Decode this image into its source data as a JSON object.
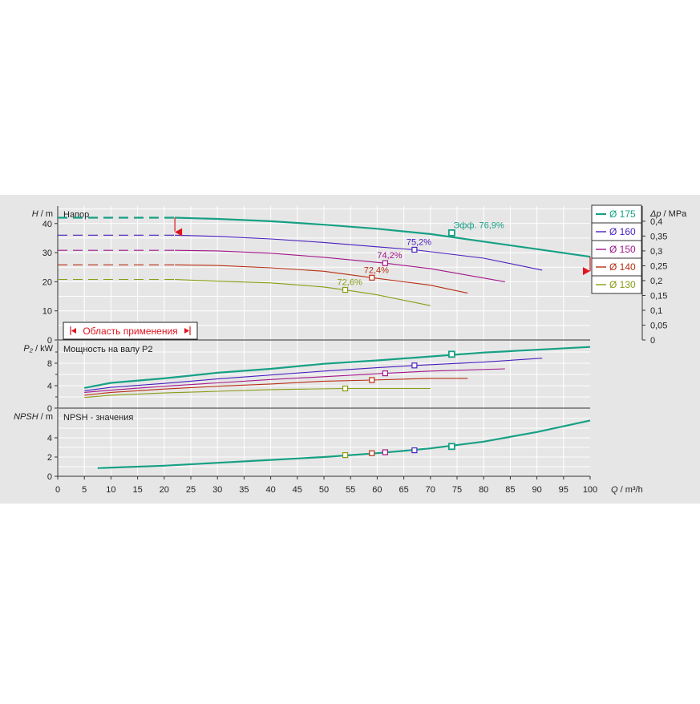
{
  "chart_data": {
    "type": "line",
    "x": {
      "label_symbol": "Q",
      "label_unit": " / m³/h",
      "range": [
        0,
        100
      ],
      "ticks": [
        0,
        5,
        10,
        15,
        20,
        25,
        30,
        35,
        40,
        45,
        50,
        55,
        60,
        65,
        70,
        75,
        80,
        85,
        90,
        95,
        100
      ]
    },
    "colors": {
      "background": "#e6e6e6",
      "grid": "#ffffff",
      "axis": "#333333",
      "operating_limit": "#e0141e"
    },
    "series": [
      {
        "name": "Ø 175",
        "color": "#17a085",
        "bold": true,
        "H": [
          [
            22,
            42.0
          ],
          [
            30,
            41.6
          ],
          [
            40,
            40.8
          ],
          [
            50,
            39.6
          ],
          [
            60,
            38.2
          ],
          [
            70,
            36.4
          ],
          [
            80,
            33.8
          ],
          [
            90,
            31.2
          ],
          [
            100,
            28.6
          ]
        ],
        "dashed_H": [
          [
            0,
            42.0
          ],
          [
            22,
            42.0
          ]
        ],
        "P2": [
          [
            5,
            3.6
          ],
          [
            10,
            4.5
          ],
          [
            20,
            5.3
          ],
          [
            30,
            6.3
          ],
          [
            40,
            7.0
          ],
          [
            50,
            7.9
          ],
          [
            60,
            8.5
          ],
          [
            70,
            9.2
          ],
          [
            80,
            9.9
          ],
          [
            90,
            10.4
          ],
          [
            100,
            10.9
          ]
        ],
        "NPSH": [
          [
            7.5,
            0.85
          ],
          [
            20,
            1.1
          ],
          [
            30,
            1.4
          ],
          [
            40,
            1.7
          ],
          [
            50,
            2.0
          ],
          [
            60,
            2.4
          ],
          [
            70,
            2.9
          ],
          [
            80,
            3.6
          ],
          [
            90,
            4.6
          ],
          [
            100,
            5.8
          ]
        ],
        "best_point": {
          "Q": 74,
          "H": 36.8,
          "P2": 9.6,
          "NPSH": 3.1,
          "label": "Эфф.  76,9%"
        }
      },
      {
        "name": "Ø 160",
        "color": "#4a1fbf",
        "bold": false,
        "H": [
          [
            22,
            36.0
          ],
          [
            30,
            35.6
          ],
          [
            40,
            34.7
          ],
          [
            50,
            33.5
          ],
          [
            60,
            32.0
          ],
          [
            67,
            31.0
          ],
          [
            80,
            28.1
          ],
          [
            91,
            24.0
          ]
        ],
        "dashed_H": [
          [
            0,
            36.0
          ],
          [
            22,
            36.0
          ]
        ],
        "P2": [
          [
            5,
            3.1
          ],
          [
            10,
            3.7
          ],
          [
            20,
            4.4
          ],
          [
            30,
            5.2
          ],
          [
            40,
            5.9
          ],
          [
            50,
            6.6
          ],
          [
            60,
            7.2
          ],
          [
            67,
            7.6
          ],
          [
            80,
            8.2
          ],
          [
            91,
            8.9
          ]
        ],
        "NPSH": [],
        "best_point": {
          "Q": 67,
          "H": 31.0,
          "P2": 7.6,
          "NPSH": 2.7,
          "label": "75,2%"
        }
      },
      {
        "name": "Ø 150",
        "color": "#a3178a",
        "bold": false,
        "H": [
          [
            22,
            30.8
          ],
          [
            30,
            30.6
          ],
          [
            40,
            29.8
          ],
          [
            50,
            28.4
          ],
          [
            61.5,
            26.4
          ],
          [
            70,
            24.5
          ],
          [
            84,
            20.0
          ]
        ],
        "dashed_H": [
          [
            0,
            30.8
          ],
          [
            22,
            30.8
          ]
        ],
        "P2": [
          [
            5,
            2.8
          ],
          [
            10,
            3.2
          ],
          [
            20,
            3.9
          ],
          [
            30,
            4.5
          ],
          [
            40,
            5.1
          ],
          [
            50,
            5.6
          ],
          [
            61.5,
            6.2
          ],
          [
            70,
            6.6
          ],
          [
            84,
            7.0
          ]
        ],
        "NPSH": [],
        "best_point": {
          "Q": 61.5,
          "H": 26.4,
          "P2": 6.2,
          "NPSH": 2.5,
          "label": "74,2%"
        }
      },
      {
        "name": "Ø 140",
        "color": "#b83015",
        "bold": false,
        "H": [
          [
            22,
            25.8
          ],
          [
            30,
            25.6
          ],
          [
            40,
            24.8
          ],
          [
            50,
            23.6
          ],
          [
            59,
            21.4
          ],
          [
            70,
            18.8
          ],
          [
            77,
            16.1
          ]
        ],
        "dashed_H": [
          [
            0,
            25.8
          ],
          [
            22,
            25.8
          ]
        ],
        "P2": [
          [
            5,
            2.3
          ],
          [
            10,
            2.8
          ],
          [
            20,
            3.4
          ],
          [
            30,
            3.9
          ],
          [
            40,
            4.3
          ],
          [
            50,
            4.8
          ],
          [
            59,
            5.0
          ],
          [
            70,
            5.3
          ],
          [
            77,
            5.3
          ]
        ],
        "NPSH": [],
        "best_point": {
          "Q": 59,
          "H": 21.4,
          "P2": 5.0,
          "NPSH": 2.4,
          "label": "72,4%"
        }
      },
      {
        "name": "Ø 130",
        "color": "#8a9c16",
        "bold": false,
        "H": [
          [
            22,
            20.8
          ],
          [
            30,
            20.2
          ],
          [
            40,
            19.6
          ],
          [
            50,
            18.2
          ],
          [
            54,
            17.2
          ],
          [
            60,
            15.5
          ],
          [
            70,
            11.8
          ]
        ],
        "dashed_H": [
          [
            0,
            20.8
          ],
          [
            22,
            20.8
          ]
        ],
        "P2": [
          [
            5,
            1.9
          ],
          [
            10,
            2.3
          ],
          [
            20,
            2.7
          ],
          [
            30,
            3.0
          ],
          [
            40,
            3.3
          ],
          [
            54,
            3.5
          ],
          [
            60,
            3.5
          ],
          [
            70,
            3.5
          ]
        ],
        "NPSH": [],
        "best_point": {
          "Q": 54,
          "H": 17.2,
          "P2": 3.5,
          "NPSH": 2.2,
          "label": "72,6%"
        }
      }
    ],
    "panels": [
      {
        "id": "head",
        "title": "Напор",
        "y_symbol": "H",
        "y_unit": " / m",
        "range": [
          0,
          46
        ],
        "ticks": [
          0,
          10,
          20,
          30,
          40
        ],
        "grid_step": 5,
        "right_axis": {
          "symbol": "Δp",
          "unit": " / MPa",
          "ticks": [
            "0",
            "0,05",
            "0,1",
            "0,15",
            "0,2",
            "0,25",
            "0,3",
            "0,35",
            "0,4"
          ],
          "tick_step_m": 5.1
        }
      },
      {
        "id": "power",
        "title": "Мощность на валу P2",
        "y_symbol": "P₂",
        "y_unit": " / kW",
        "range": [
          0,
          12
        ],
        "ticks": [
          0,
          4,
          8
        ],
        "minor_ticks": [
          2,
          6,
          10
        ],
        "grid_step": 2
      },
      {
        "id": "npsh",
        "title": "NPSH - значения",
        "y_symbol": "NPSH",
        "y_unit": " / m",
        "range": [
          0,
          7
        ],
        "ticks": [
          0,
          2,
          4
        ],
        "grid_step": 1
      }
    ],
    "application_range": {
      "label": "Область применения",
      "q_min": 22,
      "q_max": 100
    }
  }
}
